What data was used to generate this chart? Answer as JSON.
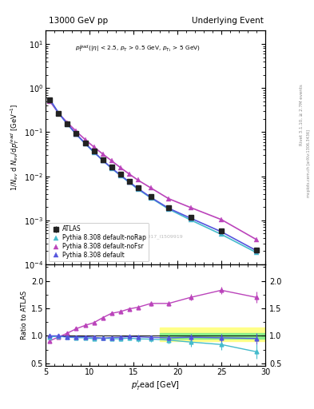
{
  "title_left": "13000 GeV pp",
  "title_right": "Underlying Event",
  "right_label_top": "Rivet 3.1.10, ≥ 2.7M events",
  "right_label_bottom": "mcplots.cern.ch [arXiv:1306.3436]",
  "watermark": "ATLAS_2017_I1509919",
  "ylabel_main": "$1/N_{ev}$ d $N_{ev}$/d$p_T^{\\rm lead}$ [GeV$^{-1}$]",
  "ylabel_ratio": "Ratio to ATLAS",
  "xlabel": "$p_T^l$ead [GeV]",
  "xlim": [
    5,
    30
  ],
  "ylim_main_lo": 0.0001,
  "ylim_main_hi": 20,
  "ylim_ratio_lo": 0.45,
  "ylim_ratio_hi": 2.3,
  "x_atlas": [
    5.5,
    6.5,
    7.5,
    8.5,
    9.5,
    10.5,
    11.5,
    12.5,
    13.5,
    14.5,
    15.5,
    17.0,
    19.0,
    21.5,
    25.0,
    29.0
  ],
  "y_atlas": [
    0.55,
    0.27,
    0.155,
    0.092,
    0.057,
    0.037,
    0.024,
    0.016,
    0.011,
    0.0076,
    0.0054,
    0.0034,
    0.00195,
    0.00115,
    0.00057,
    0.000215
  ],
  "y_atlas_err": [
    0.015,
    0.008,
    0.004,
    0.003,
    0.002,
    0.001,
    0.001,
    0.0005,
    0.0004,
    0.0003,
    0.0002,
    0.00015,
    8e-05,
    6e-05,
    4.5e-05,
    2.5e-05
  ],
  "x_pythia_default": [
    5.5,
    6.5,
    7.5,
    8.5,
    9.5,
    10.5,
    11.5,
    12.5,
    13.5,
    14.5,
    15.5,
    17.0,
    19.0,
    21.5,
    25.0,
    29.0
  ],
  "y_pythia_default": [
    0.55,
    0.268,
    0.152,
    0.09,
    0.056,
    0.036,
    0.023,
    0.0155,
    0.0107,
    0.0075,
    0.0053,
    0.0033,
    0.00188,
    0.00112,
    0.00055,
    0.000205
  ],
  "x_pythia_noFsr": [
    5.5,
    6.5,
    7.5,
    8.5,
    9.5,
    10.5,
    11.5,
    12.5,
    13.5,
    14.5,
    15.5,
    17.0,
    19.0,
    21.5,
    25.0,
    29.0
  ],
  "y_pythia_noFsr": [
    0.5,
    0.265,
    0.163,
    0.104,
    0.068,
    0.046,
    0.032,
    0.0225,
    0.0158,
    0.0113,
    0.0082,
    0.0054,
    0.0031,
    0.00195,
    0.00104,
    0.000365
  ],
  "x_pythia_noRap": [
    5.5,
    6.5,
    7.5,
    8.5,
    9.5,
    10.5,
    11.5,
    12.5,
    13.5,
    14.5,
    15.5,
    17.0,
    19.0,
    21.5,
    25.0,
    29.0
  ],
  "y_pythia_noRap": [
    0.54,
    0.268,
    0.151,
    0.089,
    0.055,
    0.035,
    0.023,
    0.0152,
    0.0104,
    0.0073,
    0.0051,
    0.0032,
    0.0018,
    0.00102,
    0.00048,
    0.000185
  ],
  "ratio_default": [
    1.0,
    1.0,
    0.981,
    0.978,
    0.983,
    0.973,
    0.958,
    0.969,
    0.973,
    0.987,
    0.981,
    0.971,
    0.964,
    0.974,
    0.965,
    0.953
  ],
  "ratio_default_err": [
    0.025,
    0.025,
    0.022,
    0.022,
    0.022,
    0.022,
    0.026,
    0.026,
    0.032,
    0.032,
    0.037,
    0.042,
    0.045,
    0.06,
    0.07,
    0.1
  ],
  "ratio_noFsr": [
    0.91,
    0.98,
    1.05,
    1.13,
    1.19,
    1.24,
    1.33,
    1.41,
    1.44,
    1.49,
    1.52,
    1.59,
    1.59,
    1.7,
    1.83,
    1.7
  ],
  "ratio_noFsr_err": [
    0.025,
    0.025,
    0.022,
    0.022,
    0.022,
    0.022,
    0.026,
    0.026,
    0.032,
    0.032,
    0.037,
    0.042,
    0.045,
    0.06,
    0.07,
    0.1
  ],
  "ratio_noRap": [
    0.982,
    0.993,
    0.974,
    0.967,
    0.965,
    0.946,
    0.958,
    0.95,
    0.945,
    0.961,
    0.944,
    0.941,
    0.923,
    0.887,
    0.842,
    0.71
  ],
  "ratio_noRap_err": [
    0.028,
    0.028,
    0.026,
    0.026,
    0.026,
    0.028,
    0.032,
    0.036,
    0.042,
    0.042,
    0.048,
    0.058,
    0.065,
    0.085,
    0.095,
    0.13
  ],
  "band_xstart": 18.0,
  "band_yellow_lo": 0.9,
  "band_yellow_hi": 1.15,
  "band_green_lo": 0.95,
  "band_green_hi": 1.05,
  "color_atlas": "#222222",
  "color_default": "#5555dd",
  "color_noFsr": "#bb44bb",
  "color_noRap": "#44bbcc",
  "legend_labels": [
    "ATLAS",
    "Pythia 8.308 default",
    "Pythia 8.308 default-noFsr",
    "Pythia 8.308 default-noRap"
  ]
}
